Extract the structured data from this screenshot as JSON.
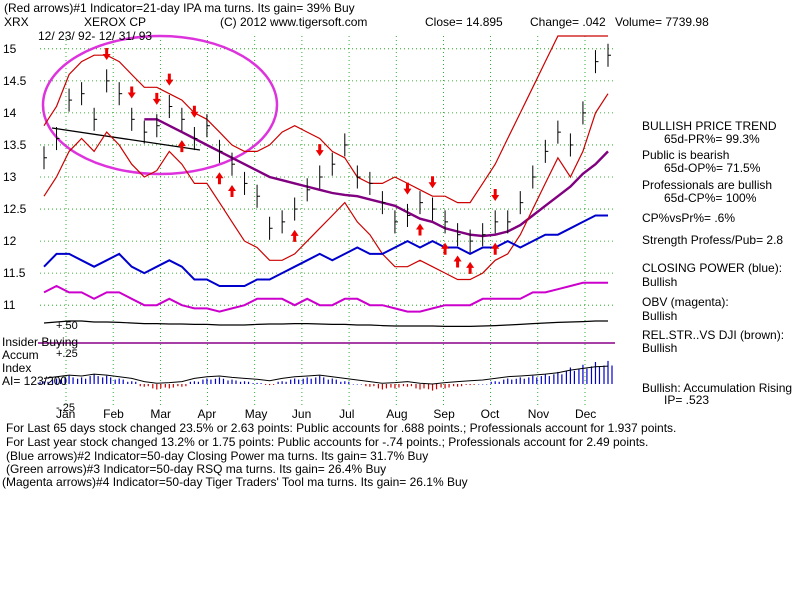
{
  "header": {
    "line1": "(Red arrows)#1 Indicator=21-day IPA ma turns. Its gain= 39% Buy",
    "symbol": "XRX",
    "company": "XEROX CP",
    "copyright": "(C) 2012 www.tigersoft.com",
    "close": "Close=  14.895",
    "change": "Change= .042",
    "volume": "Volume= 7739.98",
    "date_range": "12/ 23/ 92- 12/ 31/ 93"
  },
  "left_panel": {
    "insider_buying": "Insider Buying",
    "accum": "Accum",
    "index": "Index",
    "ai": "AI= 123/200",
    "tick_p50": "+.50",
    "tick_p25": "+.25",
    "tick_m25": "-.25"
  },
  "sidebar": {
    "items": [
      "BULLISH PRICE TREND",
      "65d-PR%= 99.3%",
      "Public is bearish",
      "65d-OP%= 71.5%",
      "Professionals are bullish",
      "65d-CP%= 100%",
      "CP%vsPr%=  .6%",
      "Strength Profess/Pub= 2.8",
      "CLOSING POWER (blue):",
      "Bullish",
      "OBV (magenta):",
      "Bullish",
      "REL.STR..VS DJI (brown):",
      "Bullish",
      "Bullish: Accumulation Rising",
      "IP=  .523"
    ]
  },
  "footer": {
    "lines": [
      "For Last 65 days stock changed  23.5% or  2.63 points:  Public accounts for  .688 points.;  Professionals account for  1.937 points.",
      "For Last year stock changed  13.2% or  1.75 points:  Public accounts for -.74 points.;  Professionals account for  2.49 points.",
      "(Blue arrows)#2 Indicator=50-day Closing Power ma turns. Its gain= 31.7% Buy",
      "(Green arrows)#3 Indicator=50-day RSQ ma turns. Its gain= 26.4% Buy",
      "(Magenta arrows)#4 Indicator=50-day Tiger Traders' Tool ma turns. Its gain= 26.1% Buy"
    ]
  },
  "chart_data": {
    "type": "line",
    "title": "XEROX CP",
    "ylim": [
      10.8,
      15.2
    ],
    "y_ticks": [
      "15",
      "14.5",
      "14",
      "13.5",
      "13",
      "12.5",
      "12",
      "11.5",
      "11"
    ],
    "y_tick_values": [
      15,
      14.5,
      14,
      13.5,
      13,
      12.5,
      12,
      11.5,
      11
    ],
    "x_ticks": [
      "Jan",
      "Feb",
      "Mar",
      "Apr",
      "May",
      "Jun",
      "Jul",
      "Aug",
      "Sep",
      "Oct",
      "Nov",
      "Dec"
    ],
    "x_tick_index": [
      0,
      1,
      2,
      3,
      4,
      5,
      6,
      7,
      8,
      9,
      10,
      11
    ],
    "grid": true,
    "series": [
      {
        "name": "Price (close)",
        "color": "#000000",
        "values": [
          13.3,
          13.6,
          14.2,
          14.3,
          13.9,
          14.5,
          14.3,
          13.9,
          13.7,
          13.8,
          14.1,
          13.9,
          13.6,
          13.8,
          13.4,
          13.2,
          12.9,
          12.7,
          12.2,
          12.3,
          12.5,
          12.8,
          13.0,
          13.2,
          13.5,
          13.0,
          12.9,
          12.6,
          12.3,
          12.4,
          12.6,
          12.5,
          12.3,
          12.1,
          12.0,
          12.1,
          12.3,
          12.3,
          12.6,
          13.0,
          13.4,
          13.7,
          13.5,
          14.0,
          14.8,
          14.9
        ]
      },
      {
        "name": "50-day MA",
        "color": "#800080",
        "values": [
          null,
          null,
          null,
          null,
          null,
          null,
          null,
          null,
          13.9,
          13.9,
          13.8,
          13.7,
          13.6,
          13.5,
          13.4,
          13.3,
          13.2,
          13.1,
          13.0,
          12.95,
          12.9,
          12.85,
          12.8,
          12.75,
          12.72,
          12.7,
          12.65,
          12.6,
          12.55,
          12.45,
          12.35,
          12.3,
          12.2,
          12.15,
          12.1,
          12.08,
          12.1,
          12.15,
          12.25,
          12.4,
          12.55,
          12.7,
          12.85,
          13.05,
          13.2,
          13.4
        ]
      },
      {
        "name": "Upper band",
        "color": "#cc0000",
        "values": [
          13.8,
          14.1,
          14.6,
          14.8,
          14.9,
          14.9,
          14.8,
          14.6,
          14.4,
          14.4,
          14.3,
          14.2,
          14.0,
          13.9,
          13.7,
          13.5,
          13.4,
          13.4,
          13.5,
          13.7,
          13.8,
          13.7,
          13.6,
          13.4,
          13.3,
          13.0,
          12.9,
          12.9,
          13.0,
          12.9,
          12.8,
          12.7,
          12.7,
          12.6,
          12.6,
          12.9,
          13.2,
          13.6,
          14.0,
          14.4,
          14.8,
          15.2,
          15.2,
          15.2,
          15.2,
          15.2
        ]
      },
      {
        "name": "Lower band",
        "color": "#cc0000",
        "values": [
          12.7,
          13.0,
          13.4,
          13.6,
          13.4,
          13.7,
          13.5,
          13.2,
          13.0,
          13.1,
          13.4,
          13.2,
          12.9,
          12.9,
          12.6,
          12.3,
          12.0,
          11.9,
          11.7,
          11.7,
          11.8,
          12.0,
          12.2,
          12.4,
          12.6,
          12.3,
          12.1,
          11.8,
          11.6,
          11.6,
          11.7,
          11.6,
          11.5,
          11.4,
          11.4,
          11.5,
          11.7,
          11.8,
          12.1,
          12.5,
          12.9,
          13.3,
          13.0,
          13.4,
          14.0,
          14.3
        ]
      },
      {
        "name": "Closing Power (blue)",
        "color": "#0000cc",
        "values": [
          11.6,
          11.8,
          11.8,
          11.7,
          11.6,
          11.7,
          11.8,
          11.6,
          11.5,
          11.6,
          11.7,
          11.6,
          11.4,
          11.4,
          11.3,
          11.3,
          11.3,
          11.4,
          11.4,
          11.5,
          11.6,
          11.7,
          11.8,
          11.7,
          11.8,
          11.9,
          11.8,
          11.8,
          11.9,
          12.0,
          11.9,
          12.0,
          11.9,
          11.9,
          11.8,
          11.9,
          11.9,
          12.0,
          11.9,
          12.0,
          12.1,
          12.1,
          12.2,
          12.3,
          12.4,
          12.4
        ]
      },
      {
        "name": "OBV (magenta)",
        "color": "#cc00cc",
        "values": [
          11.2,
          11.3,
          11.2,
          11.2,
          11.1,
          11.2,
          11.2,
          11.1,
          11.0,
          11.0,
          11.1,
          11.0,
          10.95,
          10.95,
          10.9,
          10.95,
          11.0,
          11.1,
          11.1,
          11.1,
          11.0,
          11.1,
          11.0,
          11.0,
          11.1,
          11.1,
          11.0,
          11.0,
          10.95,
          10.9,
          10.9,
          10.95,
          11.0,
          11.0,
          11.0,
          11.1,
          11.1,
          11.1,
          11.1,
          11.2,
          11.2,
          11.25,
          11.3,
          11.35,
          11.35,
          11.35
        ]
      },
      {
        "name": "Rel. Strength vs DJI (brown)",
        "color": "#000000",
        "values": [
          0.25,
          0.3,
          0.35,
          0.35,
          0.3,
          0.3,
          0.28,
          0.25,
          0.22,
          0.22,
          0.2,
          0.2,
          0.18,
          0.18,
          0.15,
          0.15,
          0.15,
          0.18,
          0.2,
          0.2,
          0.22,
          0.22,
          0.2,
          0.18,
          0.18,
          0.15,
          0.15,
          0.12,
          0.1,
          0.1,
          0.1,
          0.1,
          0.08,
          0.08,
          0.08,
          0.1,
          0.12,
          0.15,
          0.18,
          0.22,
          0.25,
          0.28,
          0.3,
          0.32,
          0.35,
          0.35
        ]
      },
      {
        "name": "Accumulation Index",
        "color": "#0000cc",
        "values": [
          0.05,
          0.1,
          0.15,
          0.12,
          0.18,
          0.15,
          0.1,
          0.05,
          -0.05,
          -0.1,
          -0.08,
          -0.05,
          0.05,
          0.1,
          0.12,
          0.08,
          0.05,
          0.02,
          -0.02,
          0.05,
          0.1,
          0.12,
          0.15,
          0.1,
          0.05,
          0.0,
          -0.05,
          -0.1,
          -0.08,
          -0.05,
          -0.1,
          -0.12,
          -0.08,
          -0.05,
          -0.02,
          0.0,
          0.05,
          0.1,
          0.12,
          0.15,
          0.18,
          0.22,
          0.3,
          0.35,
          0.4,
          0.42
        ]
      }
    ],
    "red_sell_arrows": [
      5,
      7,
      9,
      10,
      12,
      22,
      29,
      31,
      36
    ],
    "red_buy_arrows": [
      11,
      14,
      15,
      20,
      30,
      32,
      33,
      34,
      36
    ]
  }
}
